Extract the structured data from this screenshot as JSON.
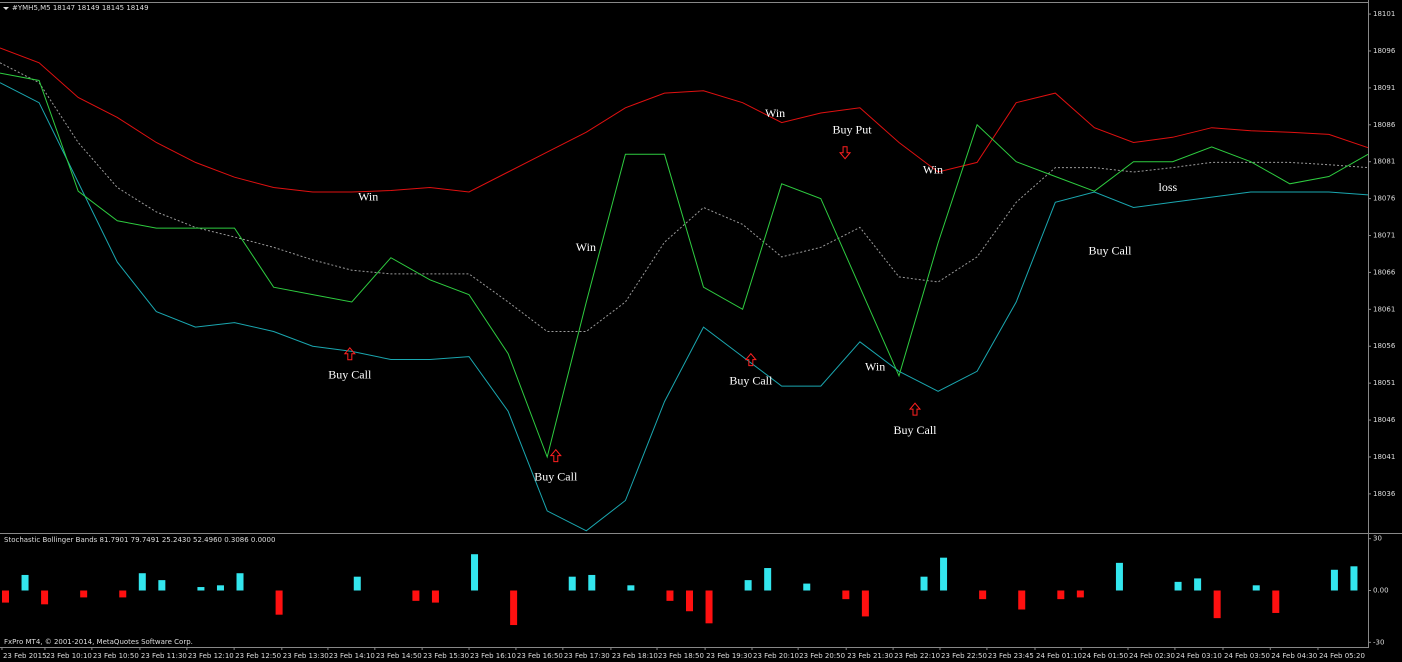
{
  "chart_data": [
    {
      "type": "line",
      "title": "#YMH5,M5  18147 18149 18145 18149",
      "xlim": [
        0,
        35
      ],
      "ylim": [
        18030.7,
        18102.5
      ],
      "yticks": [
        18101,
        18096,
        18091,
        18086,
        18081,
        18076,
        18071,
        18066,
        18061,
        18056,
        18051,
        18046,
        18041,
        18036
      ],
      "xticks": [
        {
          "value": 0.05,
          "label": "23 Feb 2015"
        },
        {
          "value": 1.15,
          "label": "23 Feb 10:10"
        },
        {
          "value": 2.35,
          "label": "23 Feb 10:50"
        },
        {
          "value": 3.58,
          "label": "23 Feb 11:30"
        },
        {
          "value": 4.78,
          "label": "23 Feb 12:10"
        },
        {
          "value": 5.99,
          "label": "23 Feb 12:50"
        },
        {
          "value": 7.21,
          "label": "23 Feb 13:30"
        },
        {
          "value": 8.39,
          "label": "23 Feb 14:10"
        },
        {
          "value": 9.59,
          "label": "23 Feb 14:50"
        },
        {
          "value": 10.8,
          "label": "23 Feb 15:30"
        },
        {
          "value": 12.0,
          "label": "23 Feb 16:10"
        },
        {
          "value": 13.2,
          "label": "23 Feb 16:50"
        },
        {
          "value": 14.4,
          "label": "23 Feb 17:30"
        },
        {
          "value": 15.63,
          "label": "23 Feb 18:10"
        },
        {
          "value": 16.81,
          "label": "23 Feb 18:50"
        },
        {
          "value": 18.04,
          "label": "23 Feb 19:30"
        },
        {
          "value": 19.24,
          "label": "23 Feb 20:10"
        },
        {
          "value": 20.42,
          "label": "23 Feb 20:50"
        },
        {
          "value": 21.65,
          "label": "23 Feb 21:30"
        },
        {
          "value": 22.85,
          "label": "23 Feb 22:10"
        },
        {
          "value": 24.05,
          "label": "23 Feb 22:50"
        },
        {
          "value": 25.25,
          "label": "23 Feb 23:45"
        },
        {
          "value": 26.48,
          "label": "24 Feb 01:10"
        },
        {
          "value": 27.66,
          "label": "24 Feb 01:50"
        },
        {
          "value": 28.86,
          "label": "24 Feb 02:30"
        },
        {
          "value": 30.06,
          "label": "24 Feb 03:10"
        },
        {
          "value": 31.29,
          "label": "24 Feb 03:50"
        },
        {
          "value": 32.5,
          "label": "24 Feb 04:30"
        },
        {
          "value": 33.72,
          "label": "24 Feb 05:20"
        }
      ],
      "series": [
        {
          "color": "#e01010",
          "dash": false,
          "values": [
            18096.4,
            18094.4,
            18089.7,
            18087,
            18083.6,
            18080.9,
            18078.9,
            18077.5,
            18076.9,
            18076.9,
            18077.1,
            18077.5,
            18076.9,
            18079.6,
            18082.3,
            18085,
            18088.3,
            18090.3,
            18090.6,
            18089,
            18086.3,
            18087.6,
            18088.3,
            18083.6,
            18079.6,
            18080.9,
            18089,
            18090.3,
            18085.6,
            18083.6,
            18084.3,
            18085.6,
            18085.2,
            18085,
            18084.7,
            18082.9
          ]
        },
        {
          "color": "#9a9a9a",
          "dash": true,
          "values": [
            18094.4,
            18091.7,
            18083.6,
            18077.5,
            18074.2,
            18072.1,
            18070.8,
            18069.4,
            18067.7,
            18066.3,
            18065.8,
            18065.8,
            18065.8,
            18062,
            18058,
            18058,
            18062,
            18070.1,
            18074.8,
            18072.5,
            18068.1,
            18069.4,
            18072.1,
            18065.4,
            18064.7,
            18068.1,
            18075.5,
            18080.2,
            18080.2,
            18079.6,
            18080.2,
            18080.9,
            18080.9,
            18080.9,
            18080.6,
            18080.2
          ]
        },
        {
          "color": "#1aa7b0",
          "dash": false,
          "values": [
            18091.7,
            18089,
            18078.2,
            18067.4,
            18060.7,
            18058.6,
            18059.2,
            18058,
            18056,
            18055.3,
            18054.2,
            18054.2,
            18054.6,
            18047.2,
            18033.7,
            18031,
            18035.1,
            18048.5,
            18058.6,
            18054.6,
            18050.6,
            18050.6,
            18056.6,
            18052.6,
            18049.9,
            18052.6,
            18062,
            18075.5,
            18076.9,
            18074.8,
            18075.5,
            18076.2,
            18076.9,
            18076.9,
            18076.9,
            18076.5
          ]
        },
        {
          "color": "#2ecc40",
          "dash": false,
          "values": [
            18093,
            18092,
            18077,
            18073,
            18072,
            18072,
            18072,
            18064,
            18063,
            18062,
            18068,
            18065,
            18063,
            18055,
            18041,
            18062,
            18082,
            18082,
            18064,
            18061,
            18078,
            18076,
            18064,
            18052,
            18070,
            18086,
            18081,
            18079,
            18077,
            18081,
            18081,
            18083,
            18081,
            18078,
            18079,
            18082
          ]
        }
      ],
      "annotations": [
        {
          "text": "Win",
          "x": 9.42,
          "y": 18076.1
        },
        {
          "text": "Buy Call",
          "x": 8.95,
          "y": 18052,
          "arrow": "up"
        },
        {
          "text": "Win",
          "x": 14.99,
          "y": 18069.3
        },
        {
          "text": "Buy Call",
          "x": 14.22,
          "y": 18038.2,
          "arrow": "up"
        },
        {
          "text": "Win",
          "x": 19.83,
          "y": 18087.4
        },
        {
          "text": "Buy Put",
          "x": 21.8,
          "y": 18085.2,
          "arrow": "down"
        },
        {
          "text": "Buy Call",
          "x": 19.21,
          "y": 18051.2,
          "arrow": "up"
        },
        {
          "text": "Win",
          "x": 23.87,
          "y": 18079.8
        },
        {
          "text": "Win",
          "x": 22.39,
          "y": 18053.1
        },
        {
          "text": "Buy Call",
          "x": 23.41,
          "y": 18044.5,
          "arrow": "up"
        },
        {
          "text": "Buy Call",
          "x": 28.4,
          "y": 18068.8
        },
        {
          "text": "loss",
          "x": 29.88,
          "y": 18077.4
        }
      ]
    },
    {
      "type": "bar",
      "title": "Stochastic Bollinger Bands 81.7901 79.7491 25.2430 52.4960 0.3086 0.0000",
      "ylim": [
        -32.7,
        32.7
      ],
      "yticks": [
        30,
        {
          "value": 0,
          "label": "0.00"
        },
        -30
      ],
      "up_color": "#33e6ee",
      "down_color": "#ff1010",
      "values": [
        -7,
        9,
        -8,
        0,
        -4,
        0,
        -4,
        10,
        6,
        0,
        2,
        3,
        10,
        0,
        -14,
        0,
        0,
        0,
        8,
        0,
        0,
        -6,
        -7,
        0,
        21,
        0,
        -20,
        0,
        0,
        8,
        9,
        0,
        3,
        0,
        -6,
        -12,
        -19,
        0,
        6,
        13,
        0,
        4,
        0,
        -5,
        -15,
        0,
        0,
        8,
        19,
        0,
        -5,
        0,
        -11,
        0,
        -5,
        -4,
        0,
        16,
        0,
        0,
        5,
        7,
        -16,
        0,
        3,
        -13,
        0,
        0,
        12,
        14
      ]
    }
  ],
  "footer": "FxPro MT4, © 2001-2014, MetaQuotes Software Corp."
}
